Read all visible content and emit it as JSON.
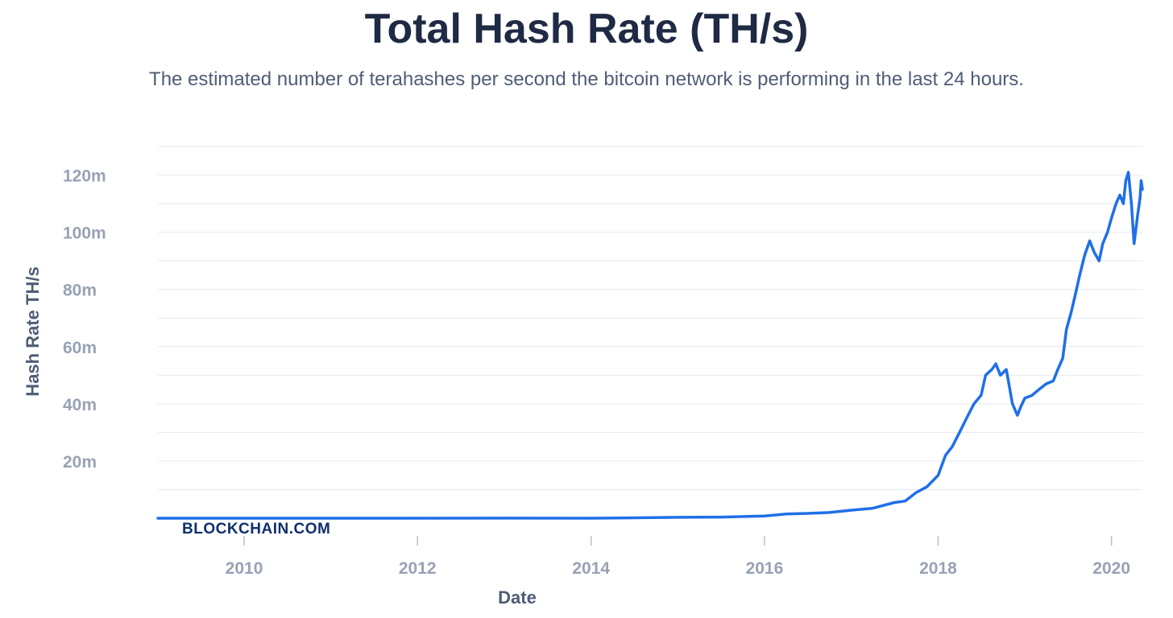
{
  "chart_data": {
    "type": "line",
    "title": "Total Hash Rate (TH/s)",
    "subtitle": "The estimated number of terahashes per second the bitcoin network is performing in the last 24 hours.",
    "xlabel": "Date",
    "ylabel": "Hash Rate TH/s",
    "x_ticks": [
      "2010",
      "2012",
      "2014",
      "2016",
      "2018",
      "2020"
    ],
    "y_ticks": [
      "20m",
      "40m",
      "60m",
      "80m",
      "100m",
      "120m"
    ],
    "ylim": [
      0,
      130000000
    ],
    "xlim": [
      "2009-01-03",
      "2020-05-10"
    ],
    "grid": true,
    "watermark": "BLOCKCHAIN.COM",
    "line_color": "#1f6fe8",
    "series": [
      {
        "x": [
          "2009-01-03",
          "2011-01-01",
          "2013-01-01",
          "2014-01-01",
          "2014-07-01",
          "2015-01-01",
          "2015-07-01",
          "2016-01-01",
          "2016-04-01",
          "2016-07-01",
          "2016-10-01",
          "2017-01-01",
          "2017-04-01",
          "2017-07-01",
          "2017-08-15",
          "2017-10-01",
          "2017-11-15",
          "2018-01-01",
          "2018-02-01",
          "2018-03-01",
          "2018-04-01",
          "2018-05-01",
          "2018-06-01",
          "2018-07-01",
          "2018-07-20",
          "2018-08-15",
          "2018-09-01",
          "2018-09-20",
          "2018-10-15",
          "2018-11-10",
          "2018-12-01",
          "2018-12-15",
          "2019-01-01",
          "2019-02-01",
          "2019-03-01",
          "2019-04-01",
          "2019-05-01",
          "2019-05-20",
          "2019-06-10",
          "2019-06-25",
          "2019-07-15",
          "2019-08-01",
          "2019-08-20",
          "2019-09-10",
          "2019-10-01",
          "2019-10-20",
          "2019-11-10",
          "2019-11-25",
          "2019-12-15",
          "2020-01-01",
          "2020-01-20",
          "2020-02-05",
          "2020-02-20",
          "2020-03-01",
          "2020-03-12",
          "2020-03-25",
          "2020-04-05",
          "2020-04-20",
          "2020-04-30",
          "2020-05-05",
          "2020-05-10"
        ],
        "y": [
          0,
          0,
          25000,
          10000,
          150000,
          300000,
          400000,
          800000,
          1500000,
          1700000,
          2000000,
          2800000,
          3500000,
          5500000,
          6000000,
          9000000,
          11000000,
          15000000,
          22000000,
          25000000,
          30000000,
          35000000,
          40000000,
          43000000,
          50000000,
          52000000,
          54000000,
          50000000,
          52000000,
          40000000,
          36000000,
          39000000,
          42000000,
          43000000,
          45000000,
          47000000,
          48000000,
          52000000,
          56000000,
          66000000,
          72000000,
          78000000,
          85000000,
          92000000,
          97000000,
          93000000,
          90000000,
          96000000,
          100000000,
          105000000,
          110000000,
          113000000,
          110000000,
          118000000,
          121000000,
          110000000,
          96000000,
          106000000,
          112000000,
          118000000,
          115000000
        ]
      }
    ]
  }
}
